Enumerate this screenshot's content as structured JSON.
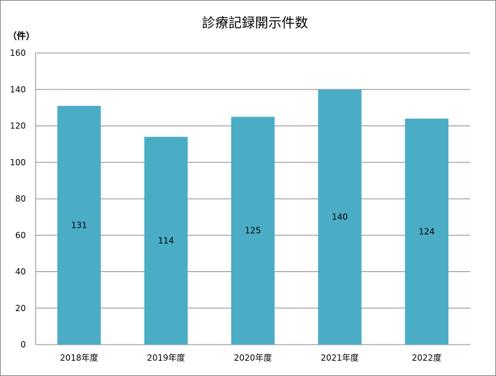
{
  "chart_data": {
    "type": "bar",
    "title": "診療記録開示件数",
    "unit_label": "（件）",
    "categories": [
      "2018年度",
      "2019年度",
      "2020年度",
      "2021年度",
      "2022度"
    ],
    "values": [
      131,
      114,
      125,
      140,
      124
    ],
    "ylim": [
      0,
      160
    ],
    "yticks": [
      0,
      20,
      40,
      60,
      80,
      100,
      120,
      140,
      160
    ],
    "grid": true,
    "legend": "none",
    "data_labels": true,
    "bar_color": "#4BACC6",
    "grid_color": "#868686"
  }
}
